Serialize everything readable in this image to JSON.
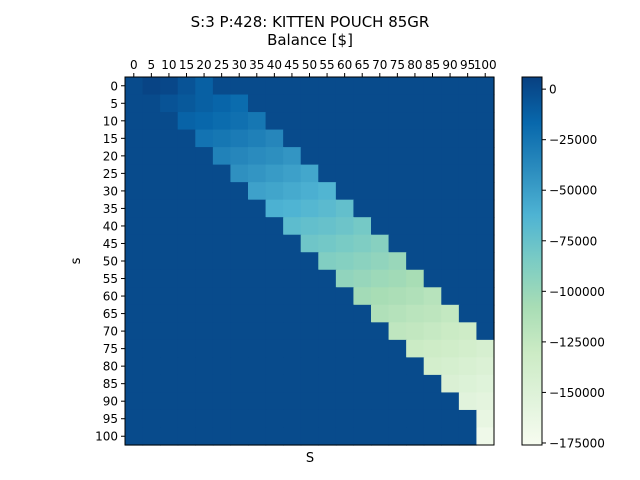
{
  "chart_data": {
    "type": "heatmap",
    "title_line1": "S:3 P:428: KITTEN POUCH 85GR",
    "title_line2": "Balance [$]",
    "xlabel": "S",
    "ylabel": "s",
    "x_ticks": [
      "0",
      "5",
      "10",
      "15",
      "20",
      "25",
      "30",
      "35",
      "40",
      "45",
      "50",
      "55",
      "60",
      "65",
      "70",
      "75",
      "80",
      "85",
      "90",
      "95",
      "100"
    ],
    "y_ticks": [
      "0",
      "5",
      "10",
      "15",
      "20",
      "25",
      "30",
      "35",
      "40",
      "45",
      "50",
      "55",
      "60",
      "65",
      "70",
      "75",
      "80",
      "85",
      "90",
      "95",
      "100"
    ],
    "colorbar": {
      "ticks": [
        "0",
        "−25000",
        "−50000",
        "−75000",
        "−100000",
        "−125000",
        "−150000",
        "−175000"
      ],
      "tick_values": [
        0,
        -25000,
        -50000,
        -75000,
        -100000,
        -125000,
        -150000,
        -175000
      ],
      "range": [
        -176000,
        6000
      ],
      "colormap": "GnBu"
    },
    "grid_size": 21,
    "s_values": [
      0,
      5,
      10,
      15,
      20,
      25,
      30,
      35,
      40,
      45,
      50,
      55,
      60,
      65,
      70,
      75,
      80,
      85,
      90,
      95,
      100
    ],
    "S_values": [
      0,
      5,
      10,
      15,
      20,
      25,
      30,
      35,
      40,
      45,
      50,
      55,
      60,
      65,
      70,
      75,
      80,
      85,
      90,
      95,
      100
    ],
    "background_value": 0,
    "band_rows": [
      {
        "s": 0,
        "S_start": 5,
        "values": [
          4000,
          2000,
          -5000,
          -12000
        ]
      },
      {
        "s": 5,
        "S_start": 10,
        "values": [
          -5000,
          -8000,
          -12000,
          -15000,
          -19000
        ]
      },
      {
        "s": 10,
        "S_start": 15,
        "values": [
          -14000,
          -16000,
          -19000,
          -22000,
          -26000
        ]
      },
      {
        "s": 15,
        "S_start": 20,
        "values": [
          -24000,
          -26000,
          -29000,
          -32000,
          -36000
        ]
      },
      {
        "s": 20,
        "S_start": 25,
        "values": [
          -33000,
          -36000,
          -39000,
          -41000,
          -45000
        ]
      },
      {
        "s": 25,
        "S_start": 30,
        "values": [
          -42000,
          -45000,
          -48000,
          -51000,
          -55000
        ]
      },
      {
        "s": 30,
        "S_start": 35,
        "values": [
          -52000,
          -54000,
          -57000,
          -60000,
          -64000
        ]
      },
      {
        "s": 35,
        "S_start": 40,
        "values": [
          -61000,
          -63000,
          -66000,
          -69000,
          -73000
        ]
      },
      {
        "s": 40,
        "S_start": 45,
        "values": [
          -70000,
          -73000,
          -75000,
          -78000,
          -82000
        ]
      },
      {
        "s": 45,
        "S_start": 50,
        "values": [
          -79000,
          -81000,
          -84000,
          -87000,
          -91000
        ]
      },
      {
        "s": 50,
        "S_start": 55,
        "values": [
          -88000,
          -90000,
          -93000,
          -96000,
          -100000
        ]
      },
      {
        "s": 55,
        "S_start": 60,
        "values": [
          -96000,
          -99000,
          -102000,
          -104000,
          -108000
        ]
      },
      {
        "s": 60,
        "S_start": 65,
        "values": [
          -105000,
          -108000,
          -110000,
          -113000,
          -117000
        ]
      },
      {
        "s": 65,
        "S_start": 70,
        "values": [
          -113000,
          -116000,
          -119000,
          -121000,
          -125000
        ]
      },
      {
        "s": 70,
        "S_start": 75,
        "values": [
          -122000,
          -124000,
          -127000,
          -130000,
          -133000
        ]
      },
      {
        "s": 75,
        "S_start": 80,
        "values": [
          -130000,
          -133000,
          -135000,
          -138000,
          -142000
        ]
      },
      {
        "s": 80,
        "S_start": 85,
        "values": [
          -138000,
          -141000,
          -144000,
          -147000
        ]
      },
      {
        "s": 85,
        "S_start": 90,
        "values": [
          -146000,
          -149000,
          -152000
        ]
      },
      {
        "s": 90,
        "S_start": 95,
        "values": [
          -154000,
          -157000
        ]
      },
      {
        "s": 95,
        "S_start": 100,
        "values": [
          -161000
        ]
      },
      {
        "s": 100,
        "S_start": 100,
        "values": [
          -168000
        ]
      }
    ]
  }
}
